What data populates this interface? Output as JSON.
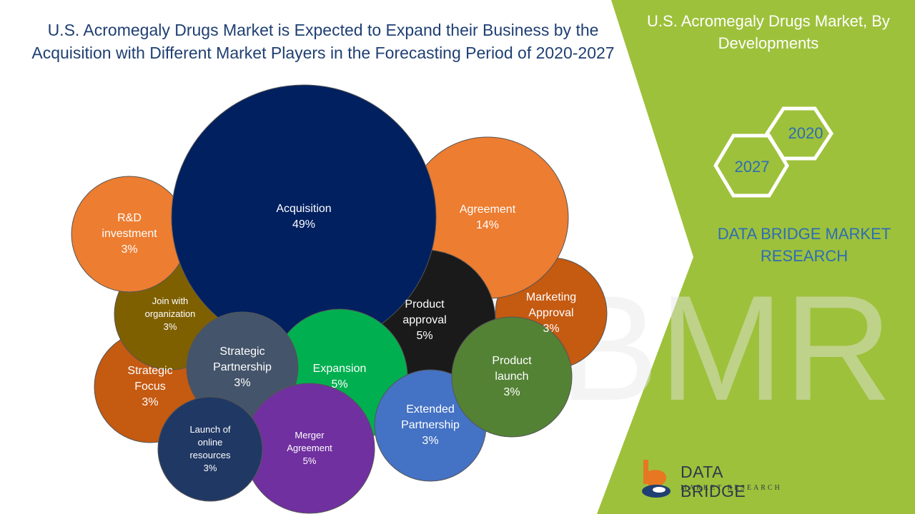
{
  "title": "U.S. Acromegaly Drugs Market is Expected to Expand their Business by the Acquisition with Different Market Players in the Forecasting Period of 2020-2027",
  "side_title": "U.S. Acromegaly Drugs Market, By Developments",
  "years": {
    "start": "2020",
    "end": "2027"
  },
  "brand_block": "DATA BRIDGE MARKET RESEARCH",
  "logo": {
    "name": "DATA BRIDGE",
    "sub": "MARKET RESEARCH"
  },
  "watermark": "DBMR",
  "colors": {
    "title": "#1f3f73",
    "accent_green": "#9dc13b",
    "brand_blue": "#2e6db4"
  },
  "chart_data": {
    "type": "bubble",
    "title": "U.S. Acromegaly Drugs Market is Expected to Expand their Business by the Acquisition with Different Market Players in the Forecasting Period of 2020-2027",
    "unit": "%",
    "items": [
      {
        "label": "Strategic\nFocus",
        "value": 3,
        "color": "#c55a11"
      },
      {
        "label": "Join with\norganization",
        "value": 3,
        "color": "#7f6000"
      },
      {
        "label": "R&D\ninvestment",
        "value": 3,
        "color": "#ed7d31"
      },
      {
        "label": "Marketing\nApproval",
        "value": 3,
        "color": "#c55a11"
      },
      {
        "label": "Agreement",
        "value": 14,
        "color": "#ed7d31"
      },
      {
        "label": "Product\napproval",
        "value": 5,
        "color": "#1a1a1a"
      },
      {
        "label": "Acquisition",
        "value": 49,
        "color": "#002060"
      },
      {
        "label": "Expansion",
        "value": 5,
        "color": "#00b050"
      },
      {
        "label": "Strategic\nPartnership",
        "value": 3,
        "color": "#44546a"
      },
      {
        "label": "Extended\nPartnership",
        "value": 3,
        "color": "#4472c4"
      },
      {
        "label": "Product\nlaunch",
        "value": 3,
        "color": "#548235"
      },
      {
        "label": "Merger\nAgreement",
        "value": 5,
        "color": "#7030a0"
      },
      {
        "label": "Launch of\nonline\nresources",
        "value": 3,
        "color": "#203864"
      }
    ]
  }
}
